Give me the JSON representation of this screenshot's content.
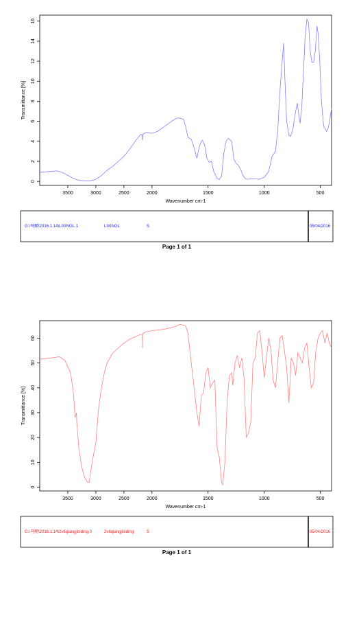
{
  "chart_data": [
    {
      "type": "line",
      "x_label": "Wavenumber cm-1",
      "y_label": "Transmittance [%]",
      "color": "#8080ff",
      "xlim": [
        4000,
        400
      ],
      "x_break": 2000,
      "x_break_zoom": 2,
      "ylim": [
        -0.4,
        16.6
      ],
      "xticks": [
        3500,
        3000,
        2500,
        2000,
        1500,
        1000,
        500
      ],
      "yticks": [
        0,
        2,
        4,
        6,
        8,
        10,
        12,
        14,
        16
      ],
      "x": [
        4000,
        3800,
        3700,
        3600,
        3500,
        3400,
        3300,
        3200,
        3100,
        3000,
        2900,
        2800,
        2700,
        2600,
        2500,
        2400,
        2300,
        2200,
        2175,
        2170,
        2165,
        2100,
        2000,
        1950,
        1900,
        1850,
        1800,
        1765,
        1720,
        1700,
        1680,
        1650,
        1620,
        1600,
        1580,
        1560,
        1550,
        1530,
        1510,
        1490,
        1470,
        1450,
        1420,
        1401,
        1380,
        1360,
        1340,
        1320,
        1290,
        1270,
        1250,
        1230,
        1210,
        1190,
        1170,
        1150,
        1100,
        1050,
        1000,
        960,
        930,
        900,
        880,
        860,
        840,
        827,
        815,
        800,
        780,
        765,
        745,
        720,
        705,
        690,
        680,
        665,
        650,
        635,
        620,
        605,
        590,
        575,
        560,
        545,
        530,
        520,
        505,
        490,
        470,
        445,
        430,
        415,
        400
      ],
      "values": [
        0.9,
        1.0,
        1.05,
        0.9,
        0.6,
        0.3,
        0.1,
        0.05,
        0.05,
        0.2,
        0.6,
        1.1,
        1.5,
        2.0,
        2.5,
        3.2,
        4.0,
        4.7,
        4.6,
        4.1,
        4.7,
        4.9,
        4.8,
        5.0,
        5.4,
        5.8,
        6.2,
        6.35,
        6.2,
        5.5,
        4.4,
        4.2,
        3.2,
        2.3,
        3.4,
        4.0,
        4.1,
        3.6,
        2.3,
        1.9,
        2.0,
        1.0,
        0.3,
        0.2,
        0.5,
        2.8,
        4.0,
        4.3,
        4.0,
        2.2,
        1.8,
        1.6,
        1.2,
        0.6,
        0.3,
        0.2,
        0.3,
        0.2,
        0.4,
        1.0,
        2.5,
        3.0,
        5.0,
        9.0,
        12.0,
        13.8,
        10.0,
        6.0,
        4.6,
        4.5,
        5.2,
        7.0,
        7.8,
        6.5,
        5.8,
        7.5,
        11.0,
        14.5,
        16.2,
        15.8,
        13.0,
        11.9,
        11.9,
        13.0,
        15.5,
        14.8,
        12.0,
        8.0,
        5.5,
        5.0,
        5.3,
        6.2,
        7.3
      ],
      "footer": {
        "file": "G:\\马翔\\2016.1.14\\LIXINGL.1",
        "sample": "LIXINGL",
        "code": "S",
        "date": "05/04/2016",
        "text_color": "#2020ff"
      },
      "page_label": "Page 1 of 1"
    },
    {
      "type": "line",
      "x_label": "Wavenumber cm-1",
      "y_label": "Transmittance [%]",
      "color": "#ff8080",
      "xlim": [
        4000,
        400
      ],
      "x_break": 2000,
      "x_break_zoom": 2,
      "ylim": [
        -1.5,
        67
      ],
      "xticks": [
        3500,
        3000,
        2500,
        2000,
        1500,
        1000,
        500
      ],
      "yticks": [
        0,
        10,
        20,
        30,
        40,
        50,
        60
      ],
      "x": [
        4000,
        3800,
        3650,
        3550,
        3450,
        3400,
        3370,
        3345,
        3340,
        3300,
        3250,
        3200,
        3150,
        3120,
        3080,
        3050,
        3000,
        2950,
        2900,
        2850,
        2800,
        2700,
        2600,
        2500,
        2400,
        2300,
        2200,
        2172,
        2170,
        2168,
        2150,
        2100,
        2000,
        1900,
        1800,
        1750,
        1700,
        1680,
        1650,
        1620,
        1600,
        1580,
        1560,
        1540,
        1520,
        1500,
        1480,
        1460,
        1440,
        1420,
        1400,
        1380,
        1370,
        1350,
        1330,
        1310,
        1290,
        1280,
        1260,
        1240,
        1220,
        1200,
        1180,
        1160,
        1140,
        1120,
        1100,
        1080,
        1060,
        1040,
        1020,
        1000,
        980,
        960,
        940,
        920,
        900,
        880,
        860,
        840,
        820,
        800,
        780,
        770,
        760,
        740,
        720,
        700,
        680,
        660,
        640,
        620,
        600,
        580,
        560,
        540,
        520,
        500,
        480,
        460,
        440,
        420,
        400
      ],
      "values": [
        51.5,
        52,
        52.5,
        51,
        46,
        38,
        28,
        30,
        26,
        15,
        8,
        4,
        2,
        2,
        8,
        12,
        18,
        32,
        40,
        46,
        50,
        54,
        56,
        58,
        59.5,
        60.5,
        61.5,
        61.5,
        56,
        61.5,
        62,
        62.5,
        63,
        63.5,
        64.5,
        65.5,
        65,
        62,
        50,
        38,
        30,
        24.5,
        37,
        38,
        46,
        48,
        40,
        42,
        43,
        16,
        12,
        2,
        1,
        10,
        35,
        45,
        46,
        41,
        50,
        53,
        48,
        52,
        44,
        20,
        22,
        26,
        50,
        52,
        62,
        63,
        55,
        44,
        52,
        60,
        55,
        43,
        40,
        50,
        60,
        61,
        55,
        48,
        34,
        42,
        52,
        50,
        45,
        54,
        52,
        50,
        56,
        58,
        48,
        40,
        42,
        55,
        60,
        62,
        63,
        58,
        62,
        58,
        56
      ],
      "footer": {
        "file": "G:\\马翔\\2016.1.14\\2v6qiangjibiding.0",
        "sample": "2v6qiangjibiding",
        "code": "S",
        "date": "05/04/2016",
        "text_color": "#ff2020"
      },
      "page_label": "Page 1 of 1"
    }
  ]
}
